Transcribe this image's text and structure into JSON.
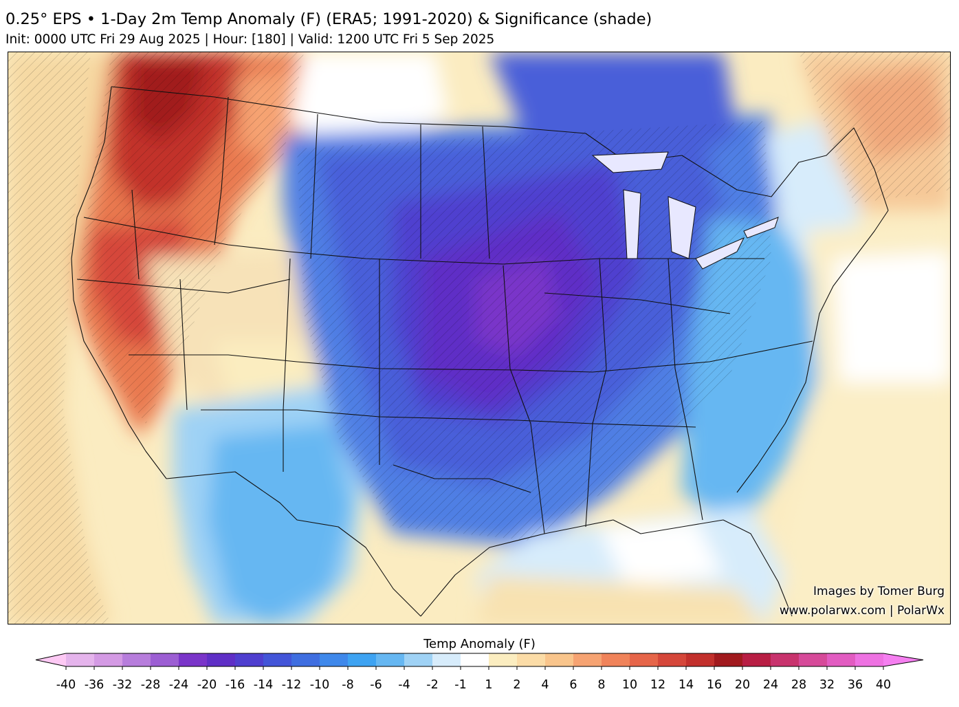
{
  "header": {
    "title": "0.25° EPS • 1-Day 2m Temp Anomaly (F) (ERA5; 1991-2020) & Significance (shade)",
    "subtitle": "Init: 0000 UTC Fri 29 Aug 2025 | Hour: [180] | Valid: 1200 UTC Fri 5 Sep 2025"
  },
  "map": {
    "region": "Contiguous United States",
    "field": "2m temperature anomaly",
    "pattern": "warm anomalies over the Pacific Northwest and California, strong cold anomalies over the Plains and Midwest, near-normal to slightly cool along the East Coast",
    "hatching": "significance shading"
  },
  "credits": {
    "line1": "Images by Tomer Burg",
    "line2": "www.polarwx.com | PolarWx"
  },
  "colorbar": {
    "label": "Temp Anomaly (F)",
    "ticks": [
      "-40",
      "-36",
      "-32",
      "-28",
      "-24",
      "-20",
      "-16",
      "-14",
      "-12",
      "-10",
      "-8",
      "-6",
      "-4",
      "-2",
      "-1",
      "1",
      "2",
      "4",
      "6",
      "8",
      "10",
      "12",
      "14",
      "16",
      "20",
      "24",
      "28",
      "32",
      "36",
      "40"
    ],
    "colors": [
      "#fdc9f4",
      "#e5b4ec",
      "#d49ae4",
      "#b77ddc",
      "#9c5ed3",
      "#7a35c9",
      "#5f2fc6",
      "#4f3fcf",
      "#4355d8",
      "#3f6ee0",
      "#3f88ea",
      "#3ea3f2",
      "#66b7f2",
      "#9fd2f5",
      "#d7ecfb",
      "#ffffff",
      "#fbedc0",
      "#fbdca7",
      "#f9c58c",
      "#f6a372",
      "#f0835a",
      "#e66549",
      "#d5473a",
      "#c2302c",
      "#a11a1e",
      "#b81e44",
      "#c8336d",
      "#d64a99",
      "#e25cc1",
      "#ee72e2",
      "#f57ff0"
    ]
  }
}
